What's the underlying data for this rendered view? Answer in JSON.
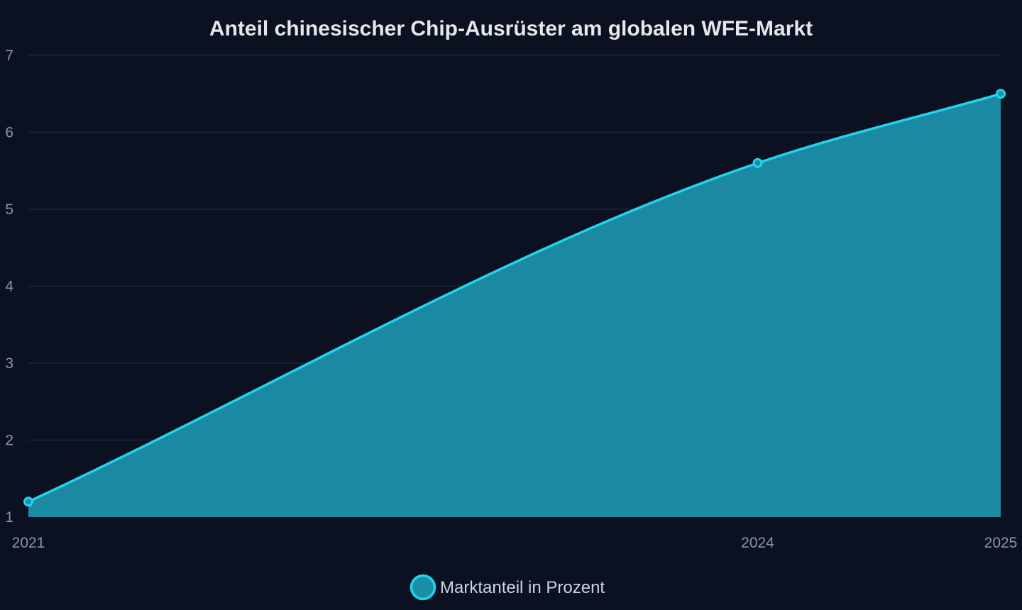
{
  "chart_data": {
    "type": "area",
    "title": "Anteil chinesischer Chip-Ausrüster am globalen WFE-Markt",
    "xlabel": "",
    "ylabel": "",
    "x": [
      "2021",
      "2024",
      "2025"
    ],
    "x_numeric": [
      2021,
      2024,
      2025
    ],
    "y_ticks": [
      1,
      2,
      3,
      4,
      5,
      6,
      7
    ],
    "ylim": [
      1,
      7
    ],
    "grid": true,
    "legend_position": "bottom-center",
    "series": [
      {
        "name": "Marktanteil in Prozent",
        "values": [
          1.2,
          5.6,
          6.5
        ],
        "line_color": "#22d3ee",
        "fill_color": "#1c8fa8"
      }
    ]
  }
}
